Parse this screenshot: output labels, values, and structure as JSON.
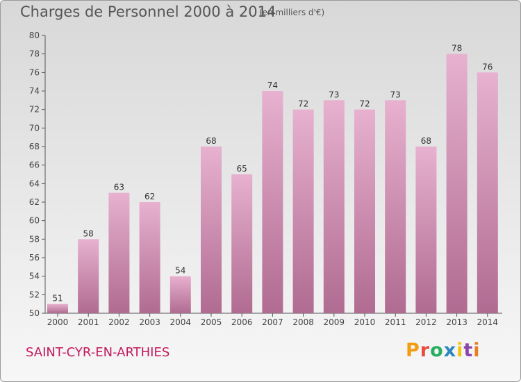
{
  "header": {
    "title": "Charges de Personnel 2000 à 2014",
    "subtitle": "(en milliers d'€)"
  },
  "footer": {
    "commune": "SAINT-CYR-EN-ARTHIES",
    "logo": "Proxiti"
  },
  "colors": {
    "bar_light": "#e7b1cf",
    "bar_dark": "#b06b91",
    "commune_text": "#c2185b",
    "logo_letters": [
      "#f39c12",
      "#e74c3c",
      "#27ae60",
      "#2e86c1",
      "#f1c40f",
      "#8e44ad",
      "#e67e22"
    ]
  },
  "chart_data": {
    "type": "bar",
    "title": "Charges de Personnel 2000 à 2014",
    "subtitle": "(en milliers d'€)",
    "categories": [
      "2000",
      "2001",
      "2002",
      "2003",
      "2004",
      "2005",
      "2006",
      "2007",
      "2008",
      "2009",
      "2010",
      "2011",
      "2012",
      "2013",
      "2014"
    ],
    "values": [
      51,
      58,
      63,
      62,
      54,
      68,
      65,
      74,
      72,
      73,
      72,
      73,
      68,
      78,
      76
    ],
    "data_labels": [
      "51",
      "58",
      "63",
      "62",
      "54",
      "68",
      "65",
      "74",
      "72",
      "73",
      "72",
      "73",
      "68",
      "78",
      "76"
    ],
    "ylim": [
      50,
      80
    ],
    "yticks": [
      50,
      52,
      54,
      56,
      58,
      60,
      62,
      64,
      66,
      68,
      70,
      72,
      74,
      76,
      78,
      80
    ],
    "grid": false,
    "legend": "none"
  }
}
